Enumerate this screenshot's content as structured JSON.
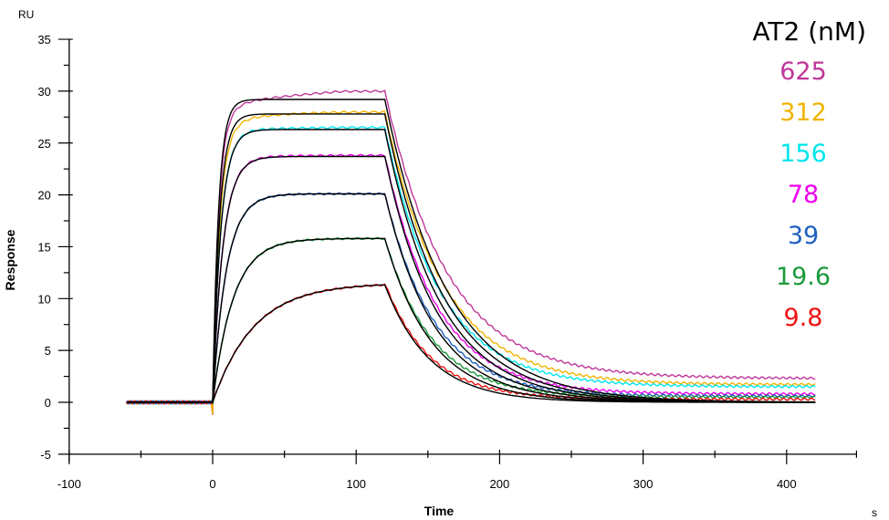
{
  "chart_data": {
    "type": "line",
    "title": "",
    "xlabel": "Time",
    "xunit": "s",
    "ylabel": "Response",
    "yunit": "RU",
    "xlim": [
      -100,
      450
    ],
    "ylim": [
      -5,
      35
    ],
    "xticks": [
      -100,
      0,
      100,
      200,
      300,
      400
    ],
    "yticks": [
      -5,
      0,
      5,
      10,
      15,
      20,
      25,
      30,
      35
    ],
    "grid": false,
    "legend": {
      "title": "AT2 (nM)",
      "position": "upper right"
    },
    "phases": {
      "baseline_start": -60,
      "association_start": 0,
      "dissociation_start": 120,
      "end": 420
    },
    "series": [
      {
        "name": "625",
        "color": "#c0379a",
        "plateau": 29.2,
        "measured_end_assoc": 30.0,
        "end_value": 2.3
      },
      {
        "name": "312",
        "color": "#f0b400",
        "plateau": 27.8,
        "measured_end_assoc": 28.0,
        "end_value": 1.7
      },
      {
        "name": "156",
        "color": "#00e5ee",
        "plateau": 26.3,
        "measured_end_assoc": 26.5,
        "end_value": 1.5
      },
      {
        "name": "78",
        "color": "#ee00ee",
        "plateau": 23.7,
        "measured_end_assoc": 23.8,
        "end_value": 0.8
      },
      {
        "name": "39",
        "color": "#1f5fbf",
        "plateau": 20.1,
        "measured_end_assoc": 20.1,
        "end_value": 0.6
      },
      {
        "name": "19.6",
        "color": "#1a9a3a",
        "plateau": 15.8,
        "measured_end_assoc": 15.8,
        "end_value": 0.5
      },
      {
        "name": "9.8",
        "color": "#ee1111",
        "plateau": 11.5,
        "measured_end_assoc": 11.5,
        "end_value": 0.3
      }
    ],
    "fit_color": "#000000",
    "fit_label": "fitted curves (black)"
  },
  "legend": {
    "title": "AT2 (nM)",
    "items": [
      "625",
      "312",
      "156",
      "78",
      "39",
      "19.6",
      "9.8"
    ]
  },
  "axes": {
    "y_unit": "RU",
    "y_title": "Response",
    "x_title": "Time",
    "x_unit": "s"
  }
}
